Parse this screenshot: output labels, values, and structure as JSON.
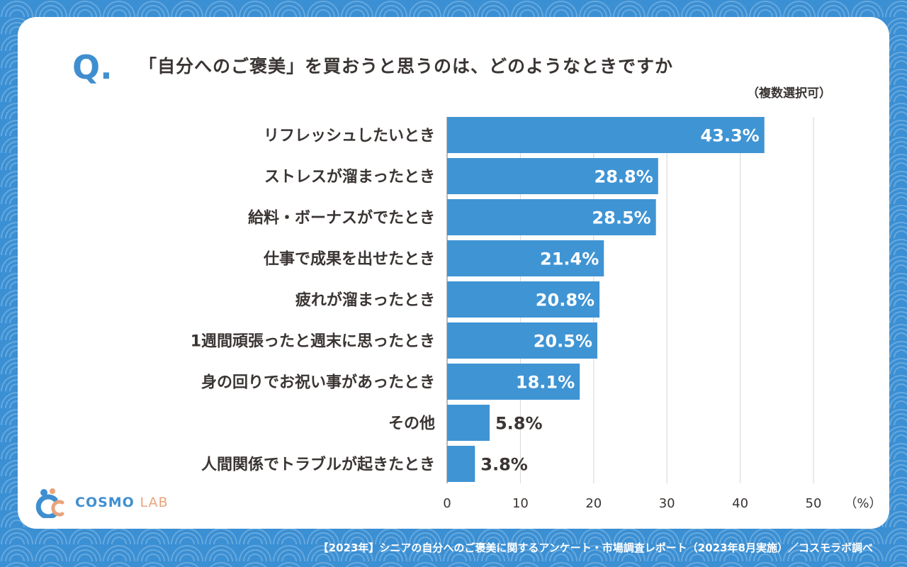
{
  "question": {
    "mark": "Q.",
    "title": "「自分へのご褒美」を買おうと思うのは、どのようなときですか",
    "note": "（複数選択可）"
  },
  "chart_data": {
    "type": "bar",
    "orientation": "horizontal",
    "categories": [
      "リフレッシュしたいとき",
      "ストレスが溜まったとき",
      "給料・ボーナスがでたとき",
      "仕事で成果を出せたとき",
      "疲れが溜まったとき",
      "1週間頑張ったと週末に思ったとき",
      "身の回りでお祝い事があったとき",
      "その他",
      "人間関係でトラブルが起きたとき"
    ],
    "values": [
      43.3,
      28.8,
      28.5,
      21.4,
      20.8,
      20.5,
      18.1,
      5.8,
      3.8
    ],
    "value_labels": [
      "43.3%",
      "28.8%",
      "28.5%",
      "21.4%",
      "20.8%",
      "20.5%",
      "18.1%",
      "5.8%",
      "3.8%"
    ],
    "xlim": [
      0,
      50
    ],
    "xticks": [
      "0",
      "10",
      "20",
      "30",
      "40",
      "50"
    ],
    "xunit": "（%）",
    "bar_color": "#3f94d4",
    "grid": true
  },
  "logo": {
    "main": "COSMO",
    "sub": "LAB"
  },
  "footer": "【2023年】シニアの自分へのご褒美に関するアンケート・市場調査レポート（2023年8月実施）／コスモラボ調べ"
}
